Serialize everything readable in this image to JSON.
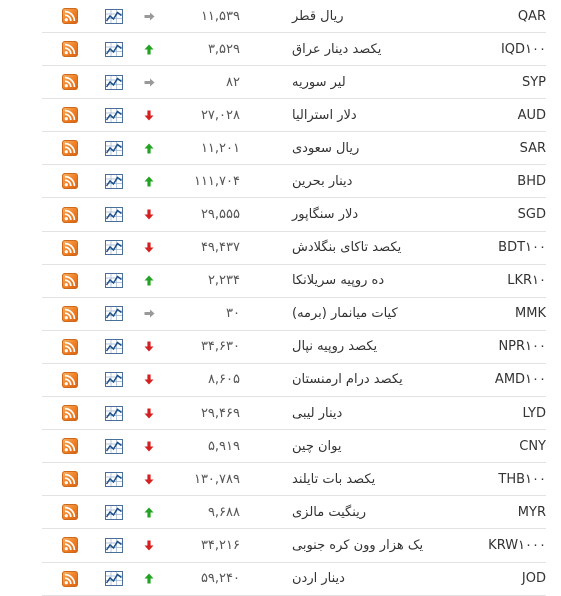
{
  "colors": {
    "up": "#22a322",
    "down": "#d42020",
    "flat": "#999999",
    "rss": "#ef7d22"
  },
  "rows": [
    {
      "code": "QAR",
      "name": "ریال قطر",
      "value": "۱۱,۵۳۹",
      "trend": "flat"
    },
    {
      "code": "IQD۱۰۰",
      "name": "یکصد دینار عراق",
      "value": "۳,۵۲۹",
      "trend": "up"
    },
    {
      "code": "SYP",
      "name": "لیر سوریه",
      "value": "۸۲",
      "trend": "flat"
    },
    {
      "code": "AUD",
      "name": "دلار استرالیا",
      "value": "۲۷,۰۲۸",
      "trend": "down"
    },
    {
      "code": "SAR",
      "name": "ریال سعودی",
      "value": "۱۱,۲۰۱",
      "trend": "up"
    },
    {
      "code": "BHD",
      "name": "دینار بحرین",
      "value": "۱۱۱,۷۰۴",
      "trend": "up"
    },
    {
      "code": "SGD",
      "name": "دلار سنگاپور",
      "value": "۲۹,۵۵۵",
      "trend": "down"
    },
    {
      "code": "BDT۱۰۰",
      "name": "یکصد تاکای بنگلادش",
      "value": "۴۹,۴۳۷",
      "trend": "down"
    },
    {
      "code": "LKR۱۰",
      "name": "ده روپیه سریلانکا",
      "value": "۲,۲۳۴",
      "trend": "up"
    },
    {
      "code": "MMK",
      "name": "کیات میانمار (برمه)",
      "value": "۳۰",
      "trend": "flat"
    },
    {
      "code": "NPR۱۰۰",
      "name": "یکصد روپیه نپال",
      "value": "۳۴,۶۳۰",
      "trend": "down"
    },
    {
      "code": "AMD۱۰۰",
      "name": "یکصد درام ارمنستان",
      "value": "۸,۶۰۵",
      "trend": "down"
    },
    {
      "code": "LYD",
      "name": "دینار لیبی",
      "value": "۲۹,۴۶۹",
      "trend": "down"
    },
    {
      "code": "CNY",
      "name": "یوان چین",
      "value": "۵,۹۱۹",
      "trend": "down"
    },
    {
      "code": "THB۱۰۰",
      "name": "یکصد بات تایلند",
      "value": "۱۳۰,۷۸۹",
      "trend": "down"
    },
    {
      "code": "MYR",
      "name": "رینگیت مالزی",
      "value": "۹,۶۸۸",
      "trend": "up"
    },
    {
      "code": "KRW۱۰۰۰",
      "name": "یک هزار وون کره جنوبی",
      "value": "۳۴,۲۱۶",
      "trend": "down"
    },
    {
      "code": "JOD",
      "name": "دینار اردن",
      "value": "۵۹,۲۴۰",
      "trend": "up"
    }
  ],
  "icons": {
    "rss": "rss-feed-icon",
    "chart": "line-chart-icon",
    "up": "arrow-up-icon",
    "down": "arrow-down-icon",
    "flat": "arrow-right-icon"
  }
}
